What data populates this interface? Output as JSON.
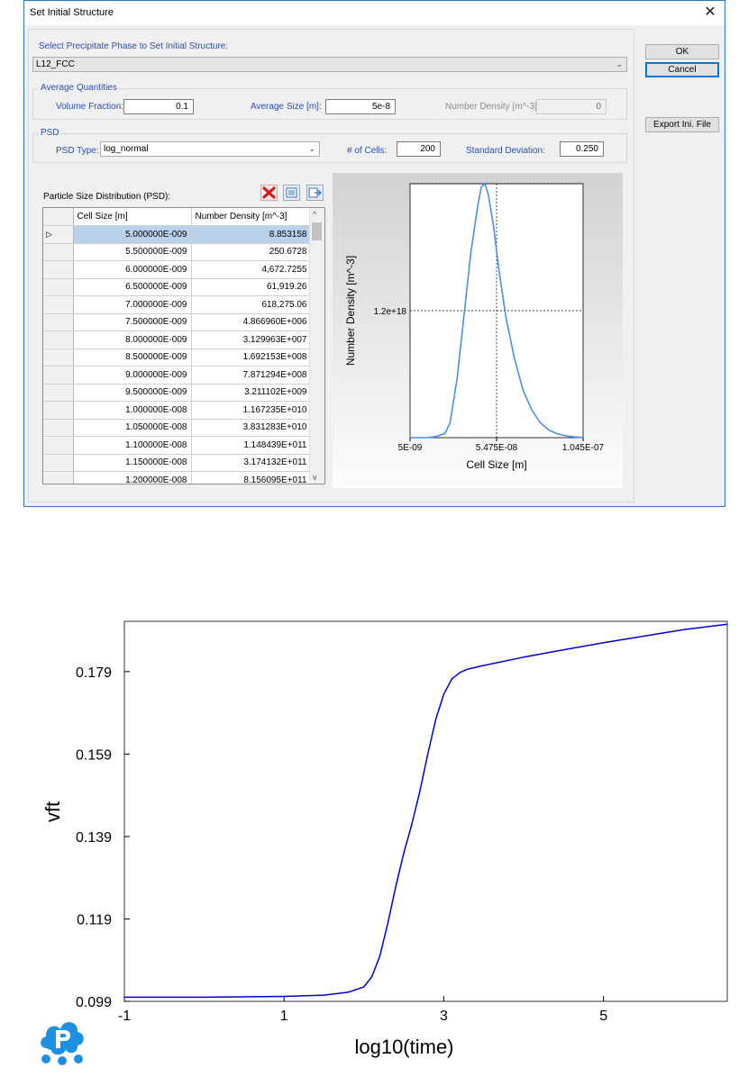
{
  "dialog": {
    "title": "Set Initial Structure",
    "select_phase_label": "Select Precipitate Phase to Set Initial Structure:",
    "phase_value": "L12_FCC",
    "average_quantities": {
      "legend": "Average Quantities",
      "volume_fraction_label": "Volume Fraction:",
      "volume_fraction_value": "0.1",
      "average_size_label": "Average Size [m]:",
      "average_size_value": "5e-8",
      "number_density_label": "Number Density [m^-3]:",
      "number_density_value": "0"
    },
    "psd": {
      "legend": "PSD",
      "type_label": "PSD Type:",
      "type_value": "log_normal",
      "cells_label": "# of Cells:",
      "cells_value": "200",
      "std_label": "Standard Deviation:",
      "std_value": "0.250",
      "table_title": "Particle Size Distribution (PSD):",
      "columns": [
        "Cell Size [m]",
        "Number Density [m^-3]"
      ],
      "rows": [
        [
          "5.000000E-009",
          "8.853158"
        ],
        [
          "5.500000E-009",
          "250.6728"
        ],
        [
          "6.000000E-009",
          "4,672.7255"
        ],
        [
          "6.500000E-009",
          "61,919.26"
        ],
        [
          "7.000000E-009",
          "618,275.06"
        ],
        [
          "7.500000E-009",
          "4.866960E+006"
        ],
        [
          "8.000000E-009",
          "3.129963E+007"
        ],
        [
          "8.500000E-009",
          "1.692153E+008"
        ],
        [
          "9.000000E-009",
          "7.871294E+008"
        ],
        [
          "9.500000E-009",
          "3.211102E+009"
        ],
        [
          "1.000000E-008",
          "1.167235E+010"
        ],
        [
          "1.050000E-008",
          "3.831283E+010"
        ],
        [
          "1.100000E-008",
          "1.148439E+011"
        ],
        [
          "1.150000E-008",
          "3.174132E+011"
        ],
        [
          "1.200000E-008",
          "8.156095E+011"
        ]
      ],
      "row_marker": "▷",
      "scroll_up": "^",
      "scroll_down": "v"
    },
    "buttons": {
      "ok": "OK",
      "cancel": "Cancel",
      "export": "Export Ini. File"
    },
    "icons": [
      "delete-icon",
      "insert-row-icon",
      "export-icon"
    ],
    "close": "✕"
  },
  "chart_data": [
    {
      "type": "line",
      "xlabel": "Cell Size [m]",
      "ylabel": "Number Density [m^-3]",
      "xticks": [
        "5E-09",
        "5.475E-08",
        "1.045E-07"
      ],
      "yticks": [
        "1.2e+18"
      ],
      "xlim": [
        5e-09,
        1.045e-07
      ],
      "ylim": [
        0,
        2.4e+18
      ],
      "grid": true,
      "color": "#4a8fe0",
      "series": [
        {
          "x": [
            5e-09,
            1.5e-08,
            2e-08,
            2.5e-08,
            2.8e-08,
            3.2e-08,
            3.6e-08,
            4e-08,
            4.4e-08,
            4.6e-08,
            4.8e-08,
            5e-08,
            5.3e-08,
            5.6e-08,
            6e-08,
            6.5e-08,
            7e-08,
            7.5e-08,
            8e-08,
            8.5e-08,
            9e-08,
            9.5e-08,
            1e-07,
            1.045e-07
          ],
          "y": [
            0,
            1000000000000000.0,
            1e+16,
            4e+16,
            1.4e+17,
            5.5e+17,
            1.15e+18,
            1.75e+18,
            2.2e+18,
            2.37e+18,
            2.4e+18,
            2.3e+18,
            2e+18,
            1.6e+18,
            1.15e+18,
            7.5e+17,
            4.5e+17,
            2.6e+17,
            1.4e+17,
            7e+16,
            3.5e+16,
            1.6e+16,
            6000000000000000.0,
            2000000000000000.0
          ]
        }
      ]
    },
    {
      "type": "line",
      "xlabel": "log10(time)",
      "ylabel": "vft",
      "xticks": [
        "-1",
        "1",
        "3",
        "5"
      ],
      "yticks": [
        "0.099",
        "0.119",
        "0.139",
        "0.159",
        "0.179"
      ],
      "xlim": [
        -1,
        6.55
      ],
      "ylim": [
        0.099,
        0.1912
      ],
      "grid": false,
      "color": "#0000cd",
      "series": [
        {
          "x": [
            -1,
            0,
            1,
            1.5,
            1.8,
            2.0,
            2.1,
            2.2,
            2.3,
            2.4,
            2.5,
            2.6,
            2.7,
            2.8,
            2.9,
            3.0,
            3.1,
            3.2,
            3.3,
            3.5,
            4.0,
            4.5,
            5.0,
            5.5,
            6.0,
            6.55
          ],
          "y": [
            0.1,
            0.1,
            0.1002,
            0.1005,
            0.1012,
            0.1025,
            0.105,
            0.11,
            0.118,
            0.127,
            0.135,
            0.142,
            0.15,
            0.159,
            0.1675,
            0.1735,
            0.1772,
            0.1788,
            0.1796,
            0.1805,
            0.1825,
            0.1843,
            0.186,
            0.1876,
            0.1892,
            0.1905
          ]
        }
      ]
    }
  ]
}
